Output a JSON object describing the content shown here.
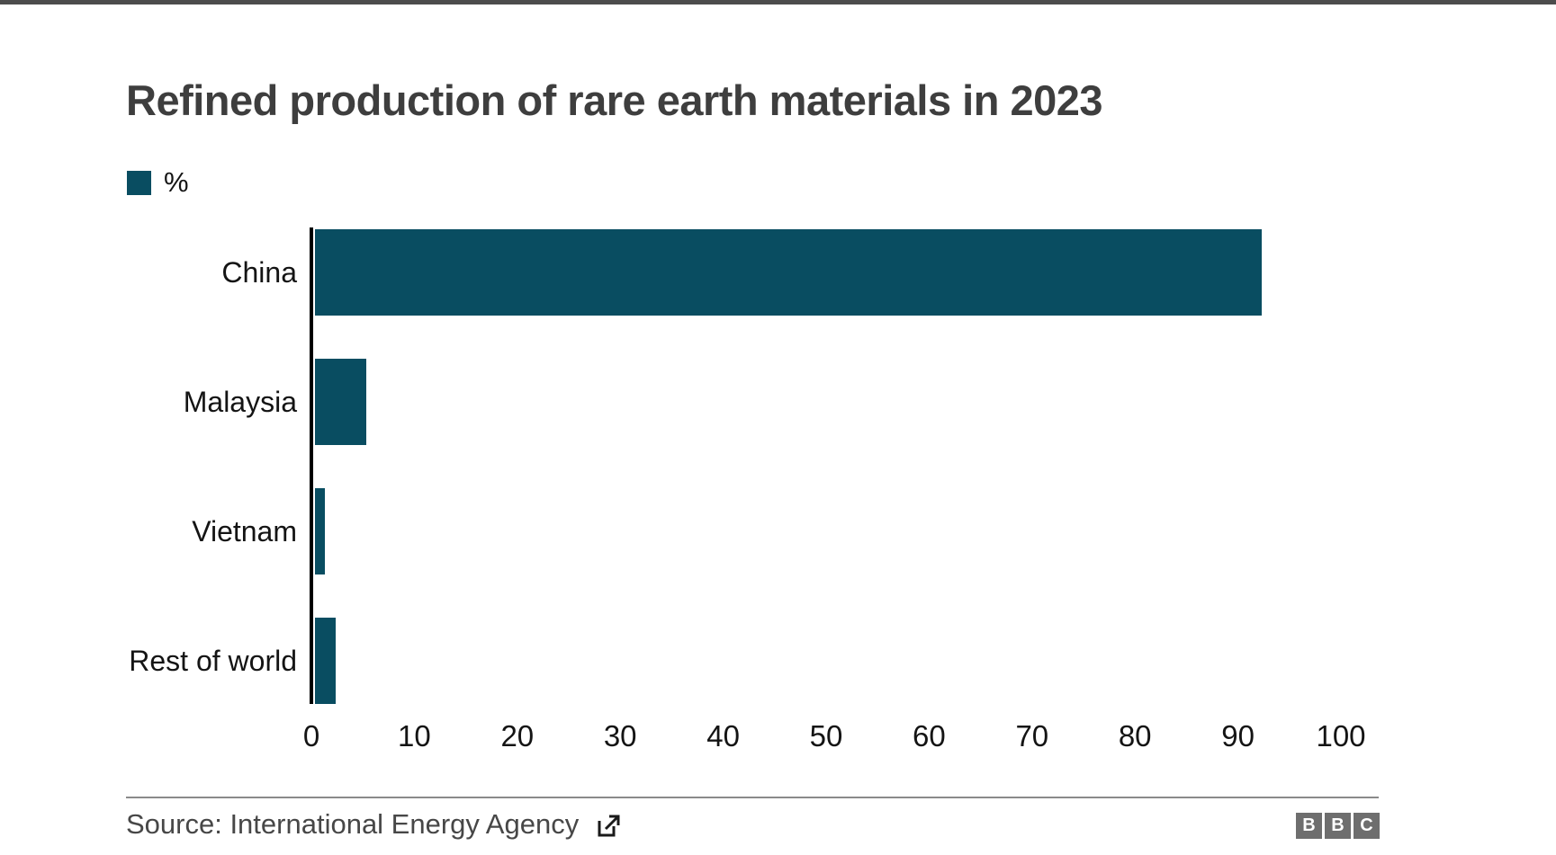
{
  "page": {
    "background": "#ffffff",
    "top_border_color": "#4c4c4c"
  },
  "chart_data": {
    "type": "bar",
    "orientation": "horizontal",
    "title": "Refined production of rare earth materials in 2023",
    "legend_label": "%",
    "legend_position": "top-left",
    "categories": [
      "China",
      "Malaysia",
      "Vietnam",
      "Rest of world"
    ],
    "values": [
      92,
      5,
      1,
      2
    ],
    "xlabel": "",
    "ylabel": "",
    "xlim": [
      0,
      100
    ],
    "x_ticks": [
      0,
      10,
      20,
      30,
      40,
      50,
      60,
      70,
      80,
      90,
      100
    ],
    "grid": false,
    "bar_color": "#094d61",
    "axis_line_color": "#000000",
    "label_color": "#141414",
    "title_color": "#3e3e3e"
  },
  "footer": {
    "source_text": "Source: International Energy Agency",
    "external_link_icon": "external-link-icon",
    "logo_letters": [
      "B",
      "B",
      "C"
    ],
    "logo_color": "#6e6e6e",
    "rule_color": "#8a8a8a"
  }
}
